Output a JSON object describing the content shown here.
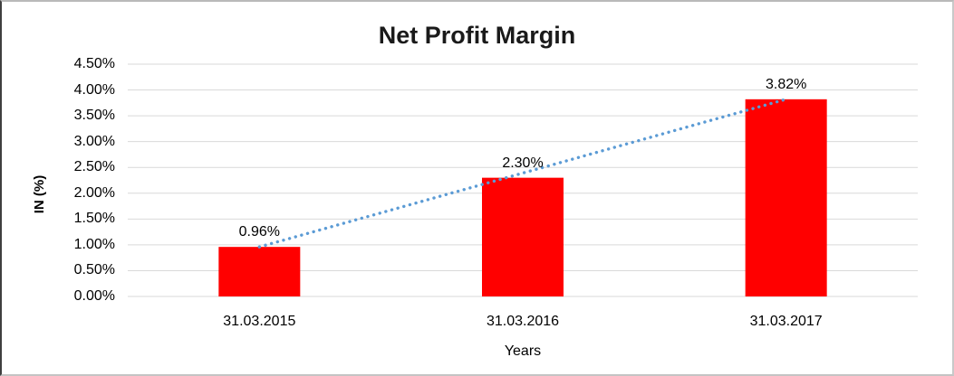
{
  "chart_data": {
    "type": "bar",
    "title": "Net Profit Margin",
    "xlabel": "Years",
    "ylabel": "IN (%)",
    "categories": [
      "31.03.2015",
      "31.03.2016",
      "31.03.2017"
    ],
    "series": [
      {
        "name": "Net Profit Margin",
        "values": [
          0.96,
          2.3,
          3.82
        ]
      }
    ],
    "data_labels": [
      "0.96%",
      "2.30%",
      "3.82%"
    ],
    "ytick_labels": [
      "0.00%",
      "0.50%",
      "1.00%",
      "1.50%",
      "2.00%",
      "2.50%",
      "3.00%",
      "3.50%",
      "4.00%",
      "4.50%"
    ],
    "ytick_values": [
      0,
      0.5,
      1.0,
      1.5,
      2.0,
      2.5,
      3.0,
      3.5,
      4.0,
      4.5
    ],
    "ylim": [
      0,
      4.5
    ],
    "grid": true,
    "legend": false,
    "trendline": {
      "type": "linear",
      "style": "dotted",
      "from_point": 0,
      "to_point": 2
    },
    "colors": {
      "bar": "#FF0000",
      "trendline": "#5B9BD5",
      "gridline": "#D9D9D9",
      "text": "#000000"
    }
  }
}
